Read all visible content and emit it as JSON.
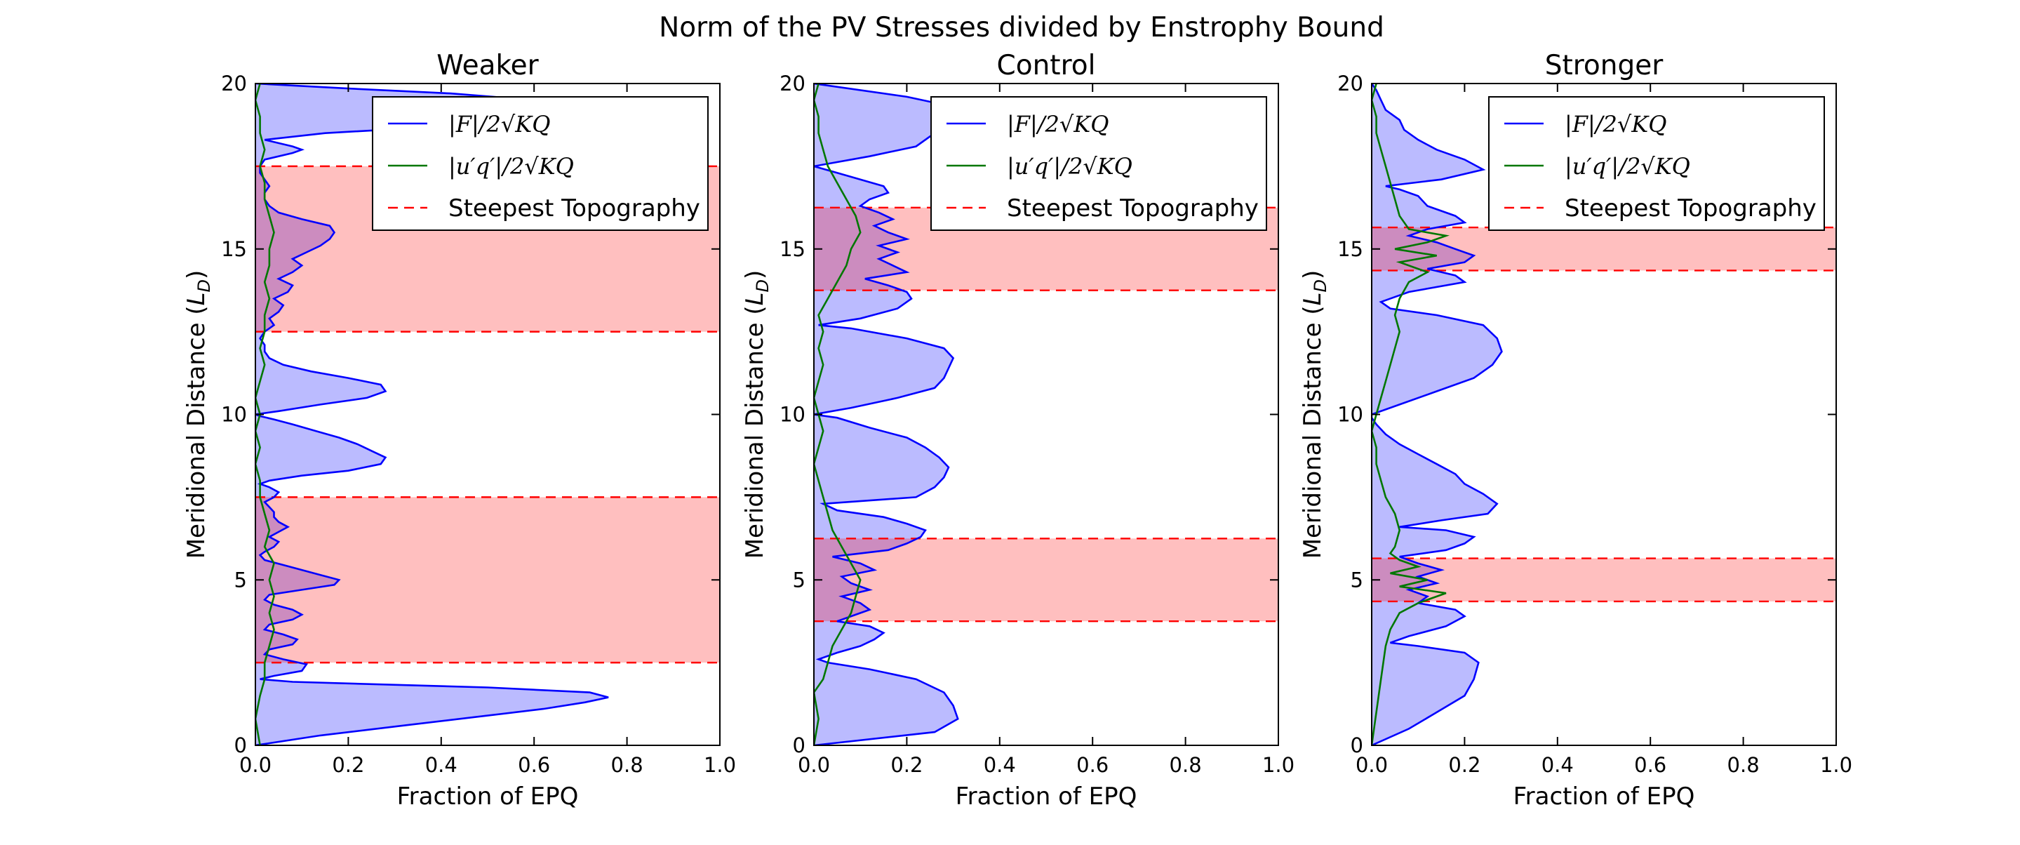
{
  "figure": {
    "title": "Norm of the PV Stresses divided by Enstrophy Bound"
  },
  "chart_data": [
    {
      "type": "area",
      "title": "Weaker",
      "orientation": "horizontal",
      "xlabel": "Fraction of EPQ",
      "ylabel": "Meridional Distance (L_D)",
      "xlim": [
        0,
        1
      ],
      "ylim": [
        0,
        20
      ],
      "xticks": [
        "0.0",
        "0.2",
        "0.4",
        "0.6",
        "0.8",
        "1.0"
      ],
      "yticks": [
        "0",
        "5",
        "10",
        "15",
        "20"
      ],
      "legend": {
        "position": "top-right",
        "entries": [
          "|F|/2√KQ",
          "|u′q′|/2√KQ",
          "Steepest Topography"
        ]
      },
      "bands": [
        [
          2.5,
          7.5
        ],
        [
          12.5,
          17.5
        ]
      ],
      "series": [
        {
          "name": "|F|/2√KQ",
          "color": "#0000ff",
          "fill": "#bbbbff",
          "y": [
            0,
            0.3,
            0.6,
            0.9,
            1.1,
            1.3,
            1.45,
            1.6,
            1.75,
            1.85,
            1.92,
            2.0,
            2.1,
            2.25,
            2.45,
            2.6,
            2.75,
            2.9,
            3.05,
            3.2,
            3.35,
            3.5,
            3.65,
            3.8,
            3.95,
            4.1,
            4.25,
            4.4,
            4.55,
            4.7,
            4.85,
            5.0,
            5.15,
            5.3,
            5.45,
            5.6,
            5.75,
            5.85,
            6.0,
            6.15,
            6.3,
            6.45,
            6.6,
            6.75,
            6.9,
            7.05,
            7.2,
            7.35,
            7.5,
            7.65,
            7.8,
            7.9,
            8.0,
            8.15,
            8.3,
            8.5,
            8.7,
            8.9,
            9.1,
            9.3,
            9.5,
            9.7,
            9.85,
            9.95,
            10.0,
            10.1,
            10.3,
            10.5,
            10.7,
            10.9,
            11.1,
            11.3,
            11.5,
            11.7,
            11.9,
            12.1,
            12.3,
            12.5,
            12.7,
            12.9,
            13.1,
            13.3,
            13.5,
            13.7,
            13.9,
            14.1,
            14.3,
            14.5,
            14.7,
            14.9,
            15.1,
            15.3,
            15.5,
            15.7,
            15.9,
            16.1,
            16.3,
            16.5,
            16.7,
            16.9,
            17.1,
            17.3,
            17.5,
            17.7,
            17.9,
            18.0,
            18.1,
            18.3,
            18.5,
            18.7,
            18.9,
            19.1,
            19.3,
            19.5,
            19.7,
            19.85,
            20.0
          ],
          "x": [
            0.0,
            0.14,
            0.32,
            0.5,
            0.62,
            0.71,
            0.76,
            0.72,
            0.5,
            0.25,
            0.08,
            0.01,
            0.04,
            0.1,
            0.11,
            0.06,
            0.02,
            0.03,
            0.08,
            0.09,
            0.06,
            0.02,
            0.03,
            0.08,
            0.1,
            0.08,
            0.04,
            0.02,
            0.03,
            0.1,
            0.17,
            0.18,
            0.14,
            0.1,
            0.06,
            0.02,
            0.01,
            0.02,
            0.04,
            0.05,
            0.03,
            0.05,
            0.07,
            0.05,
            0.04,
            0.04,
            0.03,
            0.02,
            0.04,
            0.05,
            0.03,
            0.01,
            0.03,
            0.1,
            0.2,
            0.27,
            0.28,
            0.25,
            0.22,
            0.18,
            0.13,
            0.08,
            0.04,
            0.01,
            0.0,
            0.05,
            0.14,
            0.24,
            0.28,
            0.27,
            0.2,
            0.12,
            0.06,
            0.03,
            0.02,
            0.02,
            0.01,
            0.02,
            0.04,
            0.03,
            0.05,
            0.06,
            0.04,
            0.07,
            0.08,
            0.05,
            0.08,
            0.1,
            0.08,
            0.11,
            0.14,
            0.16,
            0.17,
            0.16,
            0.1,
            0.05,
            0.03,
            0.02,
            0.02,
            0.03,
            0.02,
            0.01,
            0.01,
            0.02,
            0.08,
            0.1,
            0.08,
            0.02,
            0.15,
            0.4,
            0.62,
            0.75,
            0.74,
            0.6,
            0.42,
            0.2,
            0.0
          ]
        },
        {
          "name": "|u′q′|/2√KQ",
          "color": "#007700",
          "y": [
            0,
            0.8,
            1.5,
            2.0,
            2.5,
            3.0,
            3.5,
            4.0,
            4.5,
            5.0,
            5.5,
            6.0,
            6.5,
            7.0,
            7.5,
            8.0,
            8.5,
            9.0,
            9.5,
            10.0,
            10.5,
            11.0,
            11.5,
            12.0,
            12.5,
            13.0,
            13.5,
            14.0,
            14.5,
            15.0,
            15.5,
            16.0,
            16.5,
            17.0,
            17.5,
            18.0,
            18.5,
            19.0,
            19.5,
            20.0
          ],
          "x": [
            0.01,
            0.0,
            0.01,
            0.02,
            0.02,
            0.03,
            0.04,
            0.03,
            0.04,
            0.03,
            0.04,
            0.02,
            0.03,
            0.02,
            0.01,
            0.01,
            0.0,
            0.01,
            0.0,
            0.01,
            0.0,
            0.01,
            0.02,
            0.01,
            0.02,
            0.02,
            0.03,
            0.02,
            0.03,
            0.03,
            0.04,
            0.03,
            0.02,
            0.02,
            0.01,
            0.02,
            0.01,
            0.01,
            0.0,
            0.01
          ]
        }
      ]
    },
    {
      "type": "area",
      "title": "Control",
      "orientation": "horizontal",
      "xlabel": "Fraction of EPQ",
      "ylabel": "Meridional Distance (L_D)",
      "xlim": [
        0,
        1
      ],
      "ylim": [
        0,
        20
      ],
      "xticks": [
        "0.0",
        "0.2",
        "0.4",
        "0.6",
        "0.8",
        "1.0"
      ],
      "yticks": [
        "0",
        "5",
        "10",
        "15",
        "20"
      ],
      "legend": {
        "position": "top-right",
        "entries": [
          "|F|/2√KQ",
          "|u′q′|/2√KQ",
          "Steepest Topography"
        ]
      },
      "bands": [
        [
          3.75,
          6.25
        ],
        [
          13.75,
          16.25
        ]
      ],
      "series": [
        {
          "name": "|F|/2√KQ",
          "color": "#0000ff",
          "fill": "#bbbbff",
          "y": [
            0,
            0.4,
            0.8,
            1.2,
            1.6,
            2.0,
            2.3,
            2.5,
            2.6,
            2.8,
            3.0,
            3.2,
            3.4,
            3.6,
            3.75,
            3.9,
            4.1,
            4.3,
            4.5,
            4.7,
            4.9,
            5.1,
            5.3,
            5.5,
            5.7,
            5.9,
            6.1,
            6.3,
            6.5,
            6.7,
            6.9,
            7.1,
            7.3,
            7.5,
            7.8,
            8.1,
            8.4,
            8.7,
            9.0,
            9.3,
            9.6,
            9.9,
            10.0,
            10.2,
            10.5,
            10.8,
            11.1,
            11.4,
            11.7,
            12.0,
            12.3,
            12.6,
            12.7,
            12.9,
            13.2,
            13.5,
            13.7,
            13.9,
            14.1,
            14.3,
            14.5,
            14.7,
            14.9,
            15.1,
            15.3,
            15.5,
            15.7,
            15.9,
            16.1,
            16.3,
            16.5,
            16.7,
            16.9,
            17.1,
            17.3,
            17.5,
            17.8,
            18.1,
            18.4,
            18.7,
            19.0,
            19.3,
            19.6,
            20.0
          ],
          "x": [
            0.0,
            0.26,
            0.31,
            0.3,
            0.28,
            0.22,
            0.12,
            0.03,
            0.01,
            0.05,
            0.1,
            0.13,
            0.15,
            0.12,
            0.05,
            0.08,
            0.12,
            0.1,
            0.06,
            0.12,
            0.08,
            0.06,
            0.13,
            0.1,
            0.04,
            0.16,
            0.2,
            0.23,
            0.24,
            0.2,
            0.15,
            0.05,
            0.02,
            0.22,
            0.26,
            0.28,
            0.29,
            0.27,
            0.24,
            0.2,
            0.12,
            0.05,
            0.0,
            0.08,
            0.18,
            0.26,
            0.28,
            0.29,
            0.3,
            0.28,
            0.2,
            0.08,
            0.01,
            0.1,
            0.18,
            0.21,
            0.2,
            0.16,
            0.11,
            0.2,
            0.17,
            0.14,
            0.18,
            0.14,
            0.2,
            0.16,
            0.13,
            0.17,
            0.14,
            0.1,
            0.12,
            0.16,
            0.15,
            0.1,
            0.05,
            0.0,
            0.12,
            0.22,
            0.25,
            0.3,
            0.32,
            0.3,
            0.2,
            0.0
          ]
        },
        {
          "name": "|u′q′|/2√KQ",
          "color": "#007700",
          "y": [
            0,
            0.8,
            1.6,
            2.0,
            2.5,
            3.0,
            3.5,
            4.0,
            4.5,
            5.0,
            5.5,
            6.0,
            6.5,
            7.0,
            7.5,
            8.0,
            8.5,
            9.0,
            9.5,
            10.0,
            10.5,
            11.0,
            11.5,
            12.0,
            12.5,
            13.0,
            13.5,
            14.0,
            14.5,
            15.0,
            15.5,
            16.0,
            16.5,
            17.0,
            17.5,
            18.0,
            18.5,
            19.0,
            19.5,
            20.0
          ],
          "x": [
            0.0,
            0.01,
            0.0,
            0.02,
            0.03,
            0.04,
            0.06,
            0.08,
            0.09,
            0.1,
            0.08,
            0.06,
            0.04,
            0.03,
            0.02,
            0.01,
            0.0,
            0.01,
            0.02,
            0.01,
            0.0,
            0.01,
            0.02,
            0.01,
            0.02,
            0.01,
            0.03,
            0.05,
            0.07,
            0.08,
            0.1,
            0.09,
            0.07,
            0.05,
            0.03,
            0.02,
            0.01,
            0.01,
            0.0,
            0.01
          ]
        }
      ]
    },
    {
      "type": "area",
      "title": "Stronger",
      "orientation": "horizontal",
      "xlabel": "Fraction of EPQ",
      "ylabel": "Meridional Distance (L_D)",
      "xlim": [
        0,
        1
      ],
      "ylim": [
        0,
        20
      ],
      "xticks": [
        "0.0",
        "0.2",
        "0.4",
        "0.6",
        "0.8",
        "1.0"
      ],
      "yticks": [
        "0",
        "5",
        "10",
        "15",
        "20"
      ],
      "legend": {
        "position": "top-right",
        "entries": [
          "|F|/2√KQ",
          "|u′q′|/2√KQ",
          "Steepest Topography"
        ]
      },
      "bands": [
        [
          4.35,
          5.65
        ],
        [
          14.35,
          15.65
        ]
      ],
      "series": [
        {
          "name": "|F|/2√KQ",
          "color": "#0000ff",
          "fill": "#bbbbff",
          "y": [
            0,
            0.5,
            1.0,
            1.5,
            2.0,
            2.5,
            2.8,
            3.0,
            3.1,
            3.3,
            3.6,
            3.9,
            4.1,
            4.3,
            4.5,
            4.7,
            4.9,
            5.1,
            5.3,
            5.5,
            5.7,
            5.9,
            6.1,
            6.3,
            6.5,
            6.6,
            6.8,
            7.0,
            7.3,
            7.6,
            7.9,
            8.2,
            8.5,
            8.8,
            9.1,
            9.4,
            9.7,
            9.9,
            10.0,
            10.3,
            10.7,
            11.1,
            11.5,
            11.9,
            12.3,
            12.7,
            13.0,
            13.2,
            13.4,
            13.7,
            14.0,
            14.2,
            14.4,
            14.6,
            14.8,
            15.0,
            15.2,
            15.4,
            15.6,
            15.8,
            16.0,
            16.3,
            16.6,
            16.8,
            16.9,
            17.1,
            17.4,
            17.7,
            18.0,
            18.3,
            18.6,
            18.9,
            19.2,
            19.5,
            19.8,
            20.0
          ],
          "x": [
            0.0,
            0.08,
            0.14,
            0.2,
            0.22,
            0.23,
            0.2,
            0.1,
            0.04,
            0.08,
            0.16,
            0.2,
            0.18,
            0.1,
            0.12,
            0.08,
            0.14,
            0.1,
            0.15,
            0.1,
            0.06,
            0.16,
            0.2,
            0.22,
            0.16,
            0.06,
            0.15,
            0.25,
            0.27,
            0.24,
            0.2,
            0.18,
            0.14,
            0.1,
            0.06,
            0.03,
            0.01,
            0.0,
            0.0,
            0.06,
            0.14,
            0.22,
            0.26,
            0.28,
            0.27,
            0.24,
            0.14,
            0.04,
            0.02,
            0.08,
            0.2,
            0.18,
            0.12,
            0.2,
            0.22,
            0.18,
            0.14,
            0.08,
            0.12,
            0.2,
            0.18,
            0.12,
            0.1,
            0.06,
            0.03,
            0.15,
            0.24,
            0.2,
            0.14,
            0.1,
            0.07,
            0.06,
            0.03,
            0.02,
            0.01,
            0.0
          ]
        },
        {
          "name": "|u′q′|/2√KQ",
          "color": "#007700",
          "y": [
            0,
            1.0,
            2.0,
            3.0,
            3.5,
            4.0,
            4.3,
            4.6,
            4.8,
            5.0,
            5.2,
            5.4,
            5.6,
            5.8,
            6.0,
            6.5,
            7.0,
            7.5,
            8.0,
            8.5,
            9.0,
            9.5,
            10.0,
            10.5,
            11.0,
            11.5,
            12.0,
            12.5,
            13.0,
            13.5,
            14.0,
            14.3,
            14.6,
            14.8,
            15.0,
            15.2,
            15.4,
            15.6,
            16.0,
            16.5,
            17.0,
            17.5,
            18.0,
            18.5,
            19.0,
            19.5,
            20.0
          ],
          "x": [
            0.0,
            0.01,
            0.02,
            0.03,
            0.04,
            0.06,
            0.1,
            0.16,
            0.06,
            0.12,
            0.04,
            0.1,
            0.06,
            0.04,
            0.05,
            0.06,
            0.05,
            0.03,
            0.02,
            0.01,
            0.01,
            0.0,
            0.01,
            0.02,
            0.03,
            0.04,
            0.05,
            0.06,
            0.05,
            0.06,
            0.08,
            0.12,
            0.06,
            0.14,
            0.05,
            0.12,
            0.16,
            0.08,
            0.06,
            0.05,
            0.04,
            0.03,
            0.02,
            0.01,
            0.01,
            0.0,
            0.01
          ]
        }
      ]
    }
  ]
}
